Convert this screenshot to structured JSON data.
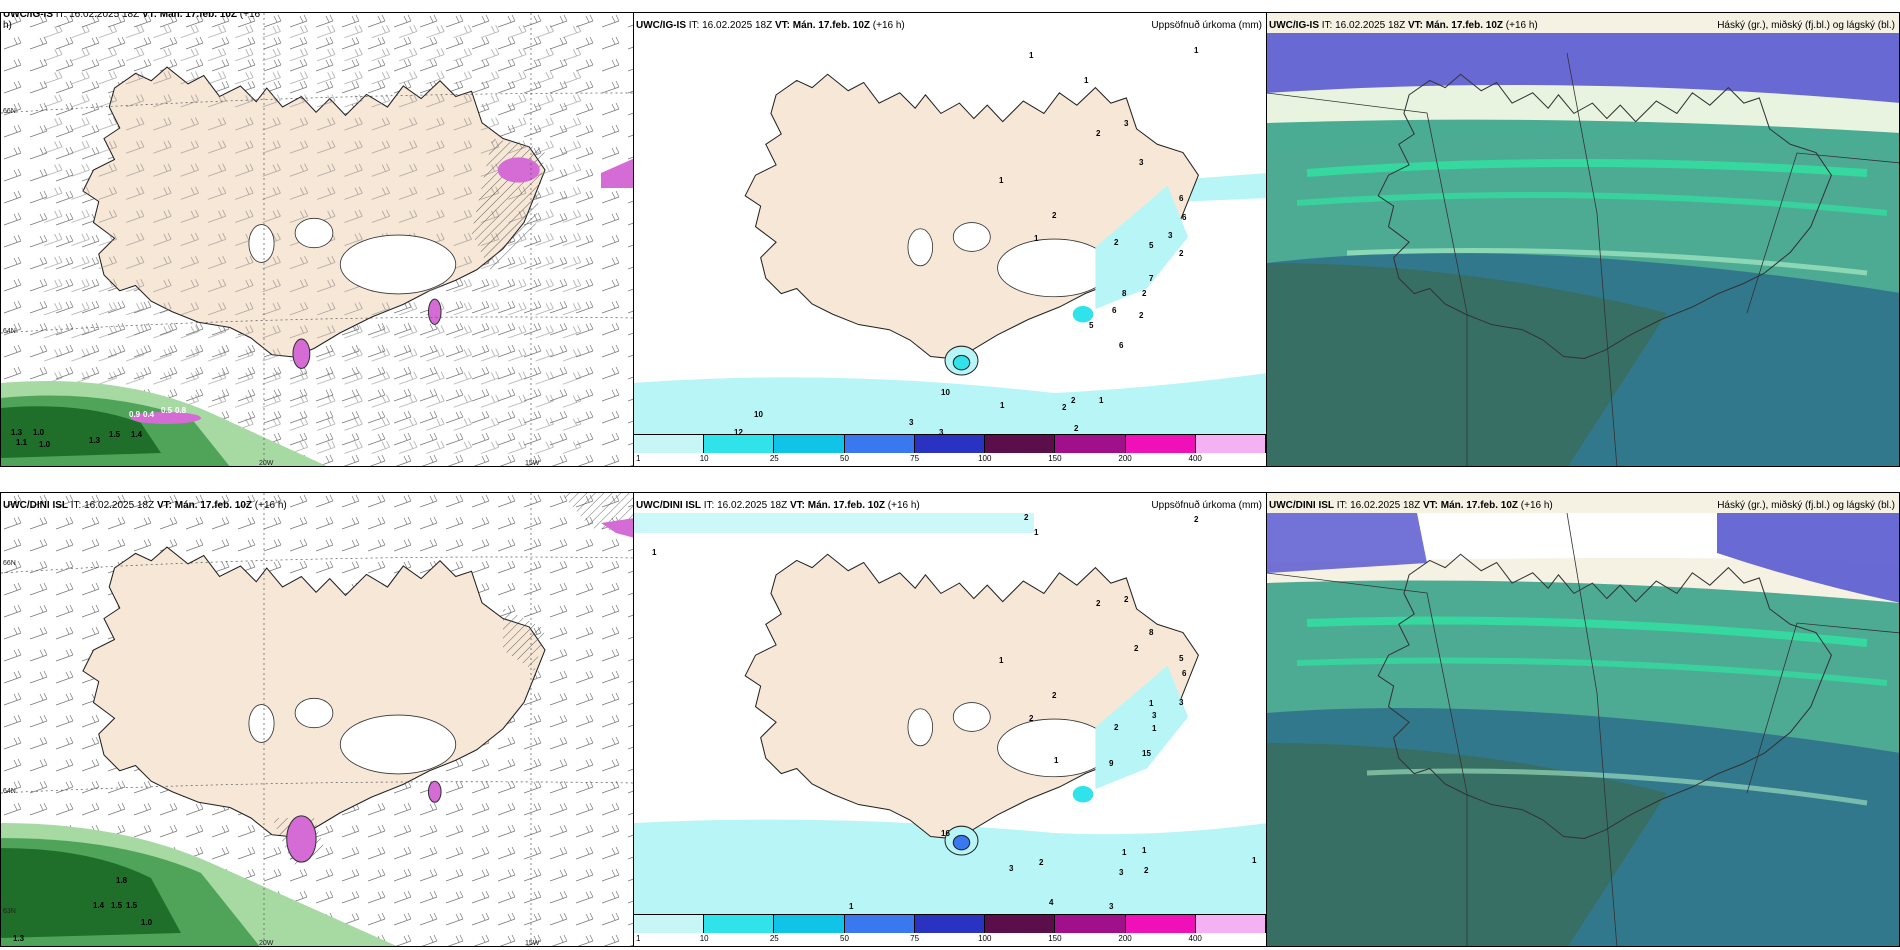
{
  "panels": {
    "top_left": {
      "model": "UWC/IG-IS",
      "it": "IT: 16.02.2025 18Z",
      "vt": "VT: Mán. 17.feb. 10Z",
      "lead": "(+16",
      "lead2": "h)",
      "lon_labels": [
        "20W",
        "15W"
      ],
      "lat_labels": [
        "66N",
        "64N"
      ],
      "values": [
        "1.3",
        "1.0",
        "1.1",
        "1.0",
        "1.5",
        "1.4",
        "1.3",
        "0.9",
        "0.4",
        "0.5",
        "0.8"
      ]
    },
    "top_middle": {
      "model": "UWC/IG-IS",
      "it": "IT: 16.02.2025 18Z",
      "vt": "VT: Mán. 17.feb. 10Z",
      "lead": "(+16 h)",
      "right_label": "Uppsöfnuð úrkoma (mm)",
      "values": [
        "1",
        "1",
        "2",
        "3",
        "3",
        "1",
        "2",
        "1",
        "2",
        "5",
        "6",
        "6",
        "3",
        "2",
        "2",
        "7",
        "8",
        "2",
        "6",
        "5",
        "6",
        "10",
        "1",
        "2",
        "1",
        "10",
        "12",
        "3",
        "3",
        "2",
        "2",
        "1"
      ]
    },
    "top_right": {
      "model": "UWC/IG-IS",
      "it": "IT: 16.02.2025 18Z",
      "vt": "VT: Mán. 17.feb. 10Z",
      "lead": "(+16 h)",
      "right_label": "Háský (gr.), miðský (fj.bl.) og lágský (bl.)"
    },
    "bottom_left": {
      "model": "UWC/DINI ISL",
      "it": "IT: 16.02.2025 18Z",
      "vt": "VT: Mán. 17.feb. 10Z",
      "lead": "(+16 h)",
      "lon_labels": [
        "20W",
        "15W"
      ],
      "lat_labels": [
        "66N",
        "64N",
        "63N"
      ],
      "values": [
        "1.8",
        "1.4",
        "1.5",
        "1.5",
        "1.0",
        "1.3"
      ]
    },
    "bottom_middle": {
      "model": "UWC/DINI ISL",
      "it": "IT: 16.02.2025 18Z",
      "vt": "VT: Mán. 17.feb. 10Z",
      "lead": "(+16 h)",
      "right_label": "Uppsöfnuð úrkoma (mm)",
      "values": [
        "2",
        "2",
        "1",
        "1",
        "2",
        "2",
        "8",
        "1",
        "5",
        "6",
        "2",
        "1",
        "3",
        "2",
        "3",
        "1",
        "9",
        "15",
        "2",
        "1",
        "2",
        "16",
        "1",
        "1",
        "3",
        "2",
        "1",
        "2",
        "4",
        "3",
        "3",
        "1"
      ]
    },
    "bottom_right": {
      "model": "UWC/DINI ISL",
      "it": "IT: 16.02.2025 18Z",
      "vt": "VT: Mán. 17.feb. 10Z",
      "lead": "(+16 h)",
      "right_label": "Háský (gr.), miðský (fj.bl.) og lágský (bl.)"
    }
  },
  "colorbar": {
    "labels": [
      "1",
      "10",
      "25",
      "50",
      "75",
      "100",
      "150",
      "200",
      "400"
    ],
    "colors": [
      "#c8f6f6",
      "#30e3ea",
      "#10c4e8",
      "#3a78f0",
      "#2a32c2",
      "#5a0f4a",
      "#a0108a",
      "#f010b8",
      "#f4b2f4"
    ]
  },
  "colors": {
    "land": "#f7e7d7",
    "glacier": "#ffffff",
    "light_cyan": "#b8f5f7",
    "cyan": "#30e3ea",
    "green_dark": "#1f6f2a",
    "green_mid": "#4fa45a",
    "green_light": "#a7d9a3",
    "magenta": "#d56bd5",
    "cloud_high": "#2f9f86",
    "cloud_mid": "#5a5ad0",
    "cloud_low": "#2c6c8a"
  }
}
